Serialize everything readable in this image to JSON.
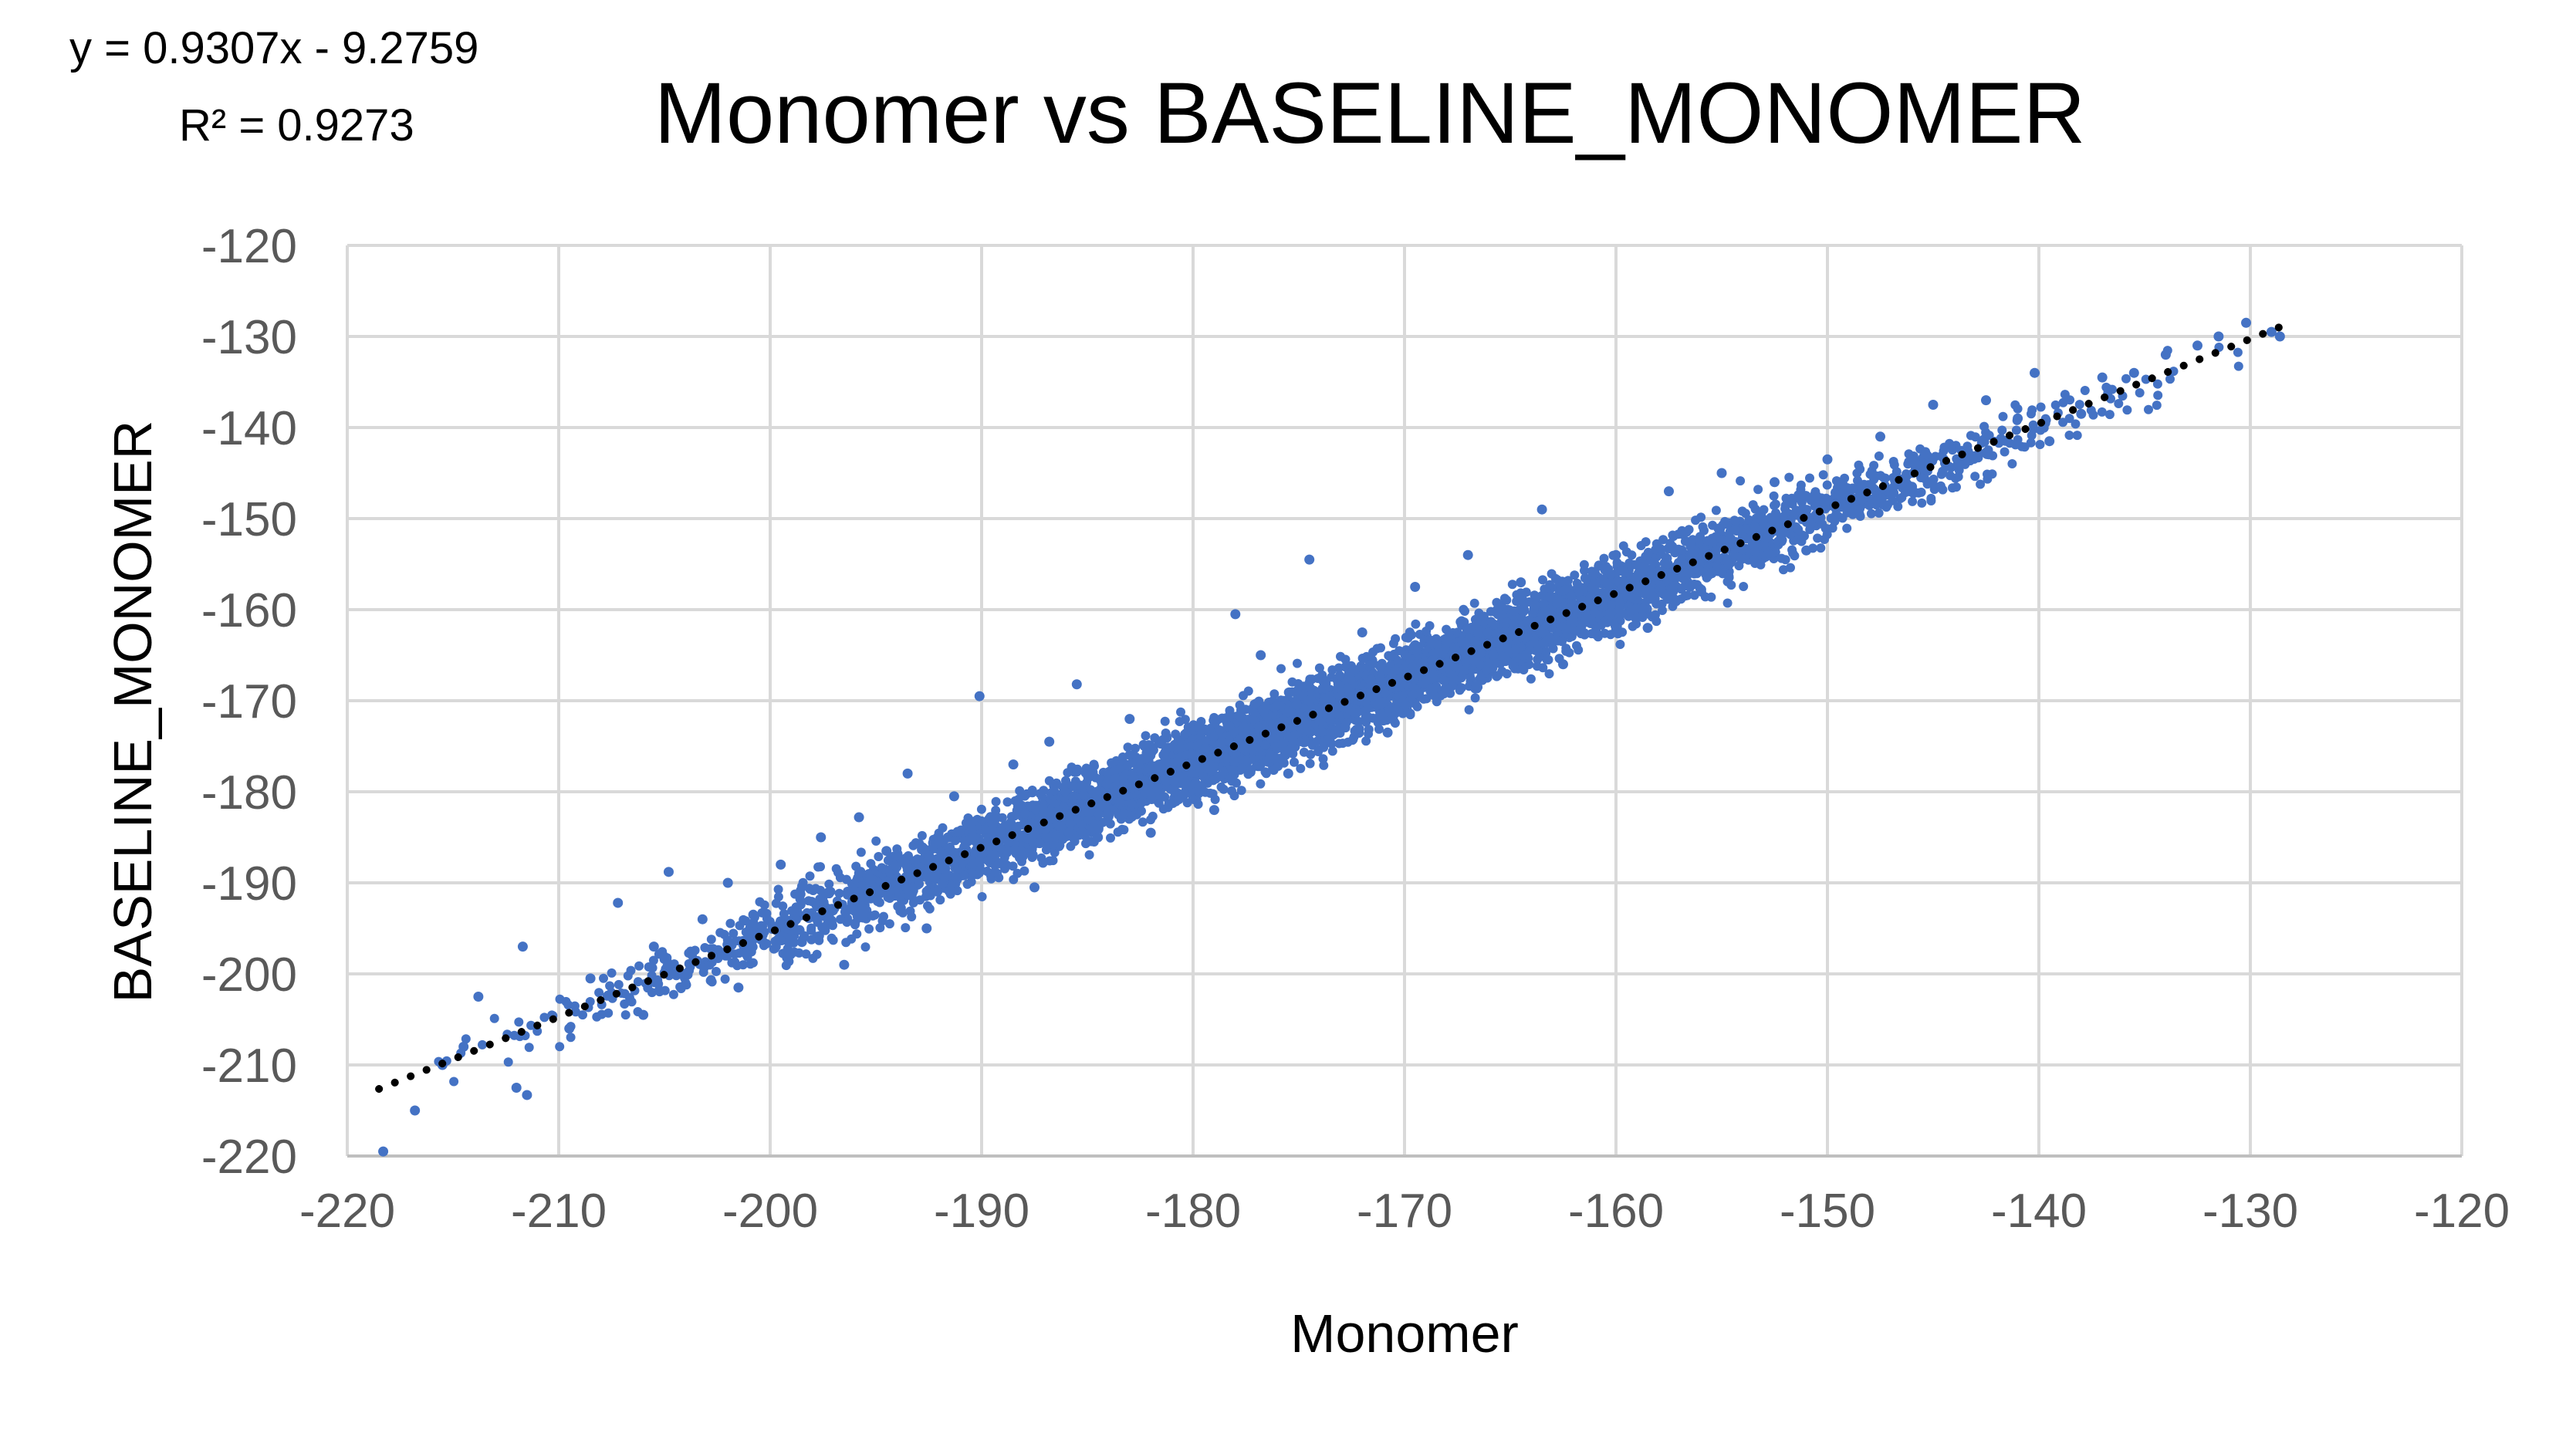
{
  "chart_data": {
    "type": "scatter",
    "title": "Monomer vs BASELINE_MONOMER",
    "xlabel": "Monomer",
    "ylabel": "BASELINE_MONOMER",
    "xlim": [
      -220,
      -120
    ],
    "ylim": [
      -220,
      -120
    ],
    "x_ticks": [
      "-220",
      "-210",
      "-200",
      "-190",
      "-180",
      "-170",
      "-160",
      "-150",
      "-140",
      "-130",
      "-120"
    ],
    "y_ticks": [
      "-120",
      "-130",
      "-140",
      "-150",
      "-160",
      "-170",
      "-180",
      "-190",
      "-200",
      "-210",
      "-220"
    ],
    "grid": true,
    "marker_color": "#4472c4",
    "trendline": {
      "type": "linear",
      "slope": 0.9307,
      "intercept": -9.2759,
      "x_range": [
        -218.5,
        -128.5
      ],
      "style": "dotted",
      "color": "#000000",
      "equation_label": "y = 0.9307x - 9.2759",
      "r2_label": "R² = 0.9273"
    },
    "series": [
      {
        "points": [
          [
            -218.3,
            -219.5
          ],
          [
            -216.8,
            -215.0
          ],
          [
            -215.5,
            -210.0
          ],
          [
            -214.5,
            -208.0
          ],
          [
            -213.8,
            -202.5
          ],
          [
            -212.0,
            -212.5
          ],
          [
            -211.5,
            -213.3
          ],
          [
            -211.7,
            -197.0
          ],
          [
            -209.5,
            -206.0
          ],
          [
            -208.5,
            -200.5
          ],
          [
            -207.2,
            -192.2
          ],
          [
            -206.0,
            -204.5
          ],
          [
            -205.5,
            -197.0
          ],
          [
            -204.8,
            -188.8
          ],
          [
            -203.2,
            -194.0
          ],
          [
            -202.0,
            -190.0
          ],
          [
            -201.5,
            -201.5
          ],
          [
            -200.8,
            -193.5
          ],
          [
            -199.5,
            -188.0
          ],
          [
            -198.5,
            -196.5
          ],
          [
            -197.6,
            -185.0
          ],
          [
            -196.5,
            -199.0
          ],
          [
            -195.8,
            -182.8
          ],
          [
            -194.5,
            -186.5
          ],
          [
            -193.5,
            -178.0
          ],
          [
            -192.6,
            -195.0
          ],
          [
            -191.3,
            -180.5
          ],
          [
            -190.1,
            -169.5
          ],
          [
            -189.5,
            -183.5
          ],
          [
            -188.5,
            -177.0
          ],
          [
            -187.5,
            -190.5
          ],
          [
            -186.8,
            -174.5
          ],
          [
            -185.5,
            -168.2
          ],
          [
            -184.5,
            -185.0
          ],
          [
            -183.0,
            -172.0
          ],
          [
            -182.0,
            -184.5
          ],
          [
            -180.5,
            -178.5
          ],
          [
            -179.0,
            -182.0
          ],
          [
            -178.0,
            -160.5
          ],
          [
            -176.8,
            -165.0
          ],
          [
            -175.5,
            -178.0
          ],
          [
            -174.5,
            -154.5
          ],
          [
            -173.5,
            -171.5
          ],
          [
            -172.0,
            -162.5
          ],
          [
            -170.8,
            -173.5
          ],
          [
            -169.5,
            -157.5
          ],
          [
            -168.5,
            -168.5
          ],
          [
            -167.0,
            -154.0
          ],
          [
            -165.8,
            -165.0
          ],
          [
            -164.5,
            -157.0
          ],
          [
            -163.5,
            -149.0
          ],
          [
            -162.5,
            -166.0
          ],
          [
            -161.0,
            -156.0
          ],
          [
            -160.0,
            -154.0
          ],
          [
            -158.5,
            -162.0
          ],
          [
            -157.5,
            -147.0
          ],
          [
            -156.5,
            -157.5
          ],
          [
            -155.0,
            -145.0
          ],
          [
            -154.0,
            -152.0
          ],
          [
            -152.5,
            -146.0
          ],
          [
            -151.0,
            -153.5
          ],
          [
            -150.0,
            -143.5
          ],
          [
            -148.5,
            -149.5
          ],
          [
            -147.5,
            -141.0
          ],
          [
            -146.0,
            -146.5
          ],
          [
            -145.0,
            -137.5
          ],
          [
            -143.5,
            -143.5
          ],
          [
            -142.5,
            -137.0
          ],
          [
            -141.0,
            -139.0
          ],
          [
            -140.2,
            -134.0
          ],
          [
            -139.5,
            -141.5
          ],
          [
            -138.0,
            -138.5
          ],
          [
            -137.0,
            -134.5
          ],
          [
            -135.5,
            -134.0
          ],
          [
            -134.0,
            -132.0
          ],
          [
            -132.5,
            -131.0
          ],
          [
            -131.5,
            -130.0
          ],
          [
            -130.2,
            -128.5
          ],
          [
            -129.0,
            -129.5
          ],
          [
            -128.6,
            -130.0
          ]
        ]
      }
    ]
  }
}
